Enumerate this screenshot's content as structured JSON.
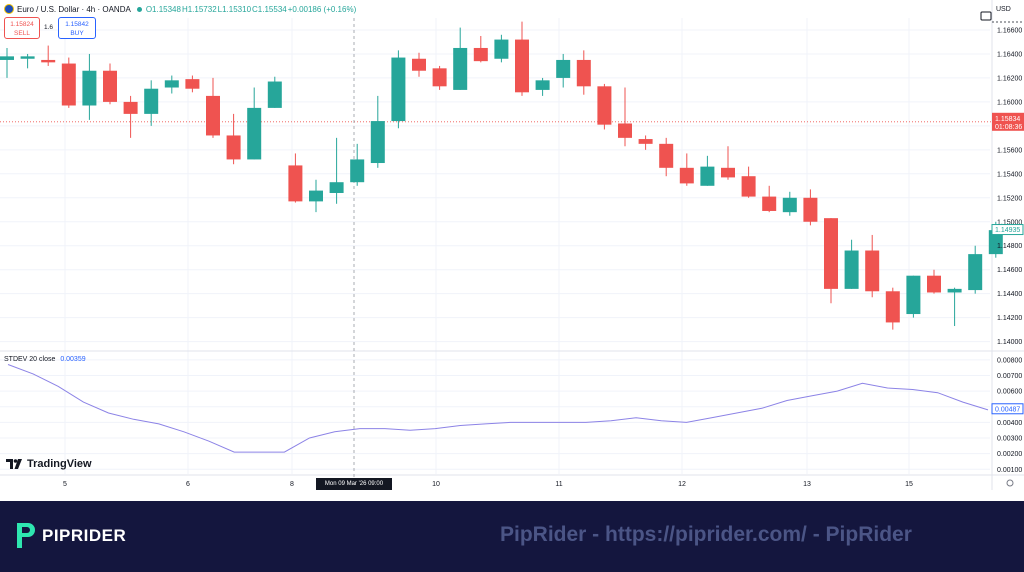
{
  "header": {
    "symbol": "Euro / U.S. Dollar · 4h · OANDA",
    "open": "O1.15348",
    "high": "H1.15732",
    "low": "L1.15310",
    "close": "C1.15534",
    "change": "+0.00186 (+0.16%)"
  },
  "trade": {
    "sell_price": "1.15824",
    "sell_label": "SELL",
    "spread": "1.6",
    "buy_price": "1.15842",
    "buy_label": "BUY"
  },
  "currency": "USD",
  "indicator": {
    "name": "STDEV 20 close",
    "value": "0.00359"
  },
  "crosshair_label": "Mon 09 Mar '26   09:00",
  "logo_text": "TradingView",
  "footer": {
    "brand": "PIPRIDER",
    "watermark": "PipRider - https://piprider.com/ - PipRider"
  },
  "colors": {
    "up": "#26a69a",
    "down": "#ef5350",
    "stdev": "#8c83e6",
    "price_tag": "#ef5350"
  },
  "chart_data": [
    {
      "type": "candlestick",
      "title": "Euro / U.S. Dollar · 4h · OANDA",
      "x_tick_labels": [
        "5",
        "6",
        "8",
        "10",
        "11",
        "12",
        "13",
        "15"
      ],
      "y_ticks": [
        "1.16600",
        "1.16400",
        "1.16200",
        "1.16000",
        "1.15800",
        "1.15600",
        "1.15400",
        "1.15200",
        "1.15000",
        "1.14800",
        "1.14600",
        "1.14400",
        "1.14200",
        "1.14000"
      ],
      "ylim": [
        1.1393,
        1.167
      ],
      "last_price": {
        "price": "1.15834",
        "countdown": "01:08:36",
        "value": 1.15834
      },
      "current_price_tag": {
        "price": "1.14935",
        "value": 1.14935
      },
      "candles": [
        {
          "o": 1.1635,
          "h": 1.1645,
          "l": 1.162,
          "c": 1.1638
        },
        {
          "o": 1.1636,
          "h": 1.164,
          "l": 1.1628,
          "c": 1.1638
        },
        {
          "o": 1.1635,
          "h": 1.1647,
          "l": 1.163,
          "c": 1.1633
        },
        {
          "o": 1.1632,
          "h": 1.1637,
          "l": 1.1595,
          "c": 1.1597
        },
        {
          "o": 1.1597,
          "h": 1.164,
          "l": 1.1585,
          "c": 1.1626
        },
        {
          "o": 1.1626,
          "h": 1.1632,
          "l": 1.1598,
          "c": 1.16
        },
        {
          "o": 1.16,
          "h": 1.1605,
          "l": 1.157,
          "c": 1.159
        },
        {
          "o": 1.159,
          "h": 1.1618,
          "l": 1.158,
          "c": 1.1611
        },
        {
          "o": 1.1612,
          "h": 1.1622,
          "l": 1.1607,
          "c": 1.1618
        },
        {
          "o": 1.1619,
          "h": 1.1622,
          "l": 1.1608,
          "c": 1.1611
        },
        {
          "o": 1.1605,
          "h": 1.162,
          "l": 1.157,
          "c": 1.1572
        },
        {
          "o": 1.1572,
          "h": 1.159,
          "l": 1.1548,
          "c": 1.1552
        },
        {
          "o": 1.1552,
          "h": 1.1612,
          "l": 1.1552,
          "c": 1.1595
        },
        {
          "o": 1.1595,
          "h": 1.1621,
          "l": 1.1595,
          "c": 1.1617
        },
        {
          "o": 1.1547,
          "h": 1.1557,
          "l": 1.1516,
          "c": 1.1517
        },
        {
          "o": 1.1517,
          "h": 1.1535,
          "l": 1.1508,
          "c": 1.1526
        },
        {
          "o": 1.1524,
          "h": 1.157,
          "l": 1.1515,
          "c": 1.1533
        },
        {
          "o": 1.1533,
          "h": 1.1565,
          "l": 1.153,
          "c": 1.1552
        },
        {
          "o": 1.1549,
          "h": 1.1605,
          "l": 1.1545,
          "c": 1.1584
        },
        {
          "o": 1.1584,
          "h": 1.1643,
          "l": 1.1578,
          "c": 1.1637
        },
        {
          "o": 1.1636,
          "h": 1.1641,
          "l": 1.1621,
          "c": 1.1626
        },
        {
          "o": 1.1628,
          "h": 1.163,
          "l": 1.161,
          "c": 1.1613
        },
        {
          "o": 1.161,
          "h": 1.1662,
          "l": 1.161,
          "c": 1.1645
        },
        {
          "o": 1.1645,
          "h": 1.1655,
          "l": 1.1633,
          "c": 1.1634
        },
        {
          "o": 1.1636,
          "h": 1.1656,
          "l": 1.1633,
          "c": 1.1652
        },
        {
          "o": 1.1652,
          "h": 1.1667,
          "l": 1.1605,
          "c": 1.1608
        },
        {
          "o": 1.161,
          "h": 1.162,
          "l": 1.1605,
          "c": 1.1618
        },
        {
          "o": 1.162,
          "h": 1.164,
          "l": 1.1612,
          "c": 1.1635
        },
        {
          "o": 1.1635,
          "h": 1.1643,
          "l": 1.1606,
          "c": 1.1613
        },
        {
          "o": 1.1613,
          "h": 1.1615,
          "l": 1.1577,
          "c": 1.1581
        },
        {
          "o": 1.1582,
          "h": 1.1612,
          "l": 1.1563,
          "c": 1.157
        },
        {
          "o": 1.1569,
          "h": 1.1572,
          "l": 1.156,
          "c": 1.1565
        },
        {
          "o": 1.1565,
          "h": 1.157,
          "l": 1.1538,
          "c": 1.1545
        },
        {
          "o": 1.1545,
          "h": 1.1557,
          "l": 1.153,
          "c": 1.1532
        },
        {
          "o": 1.153,
          "h": 1.1555,
          "l": 1.153,
          "c": 1.1546
        },
        {
          "o": 1.1545,
          "h": 1.1563,
          "l": 1.1535,
          "c": 1.1537
        },
        {
          "o": 1.1538,
          "h": 1.1546,
          "l": 1.152,
          "c": 1.1521
        },
        {
          "o": 1.1521,
          "h": 1.153,
          "l": 1.1508,
          "c": 1.1509
        },
        {
          "o": 1.1508,
          "h": 1.1525,
          "l": 1.1505,
          "c": 1.152
        },
        {
          "o": 1.152,
          "h": 1.1527,
          "l": 1.1497,
          "c": 1.15
        },
        {
          "o": 1.1503,
          "h": 1.1503,
          "l": 1.1432,
          "c": 1.1444
        },
        {
          "o": 1.1444,
          "h": 1.1485,
          "l": 1.1444,
          "c": 1.1476
        },
        {
          "o": 1.1476,
          "h": 1.1489,
          "l": 1.1437,
          "c": 1.1442
        },
        {
          "o": 1.1442,
          "h": 1.1445,
          "l": 1.141,
          "c": 1.1416
        },
        {
          "o": 1.1423,
          "h": 1.1455,
          "l": 1.142,
          "c": 1.1455
        },
        {
          "o": 1.1455,
          "h": 1.146,
          "l": 1.144,
          "c": 1.1441
        },
        {
          "o": 1.1441,
          "h": 1.1445,
          "l": 1.1413,
          "c": 1.1444
        },
        {
          "o": 1.1443,
          "h": 1.148,
          "l": 1.144,
          "c": 1.1473
        },
        {
          "o": 1.1473,
          "h": 1.15,
          "l": 1.147,
          "c": 1.1493
        }
      ]
    },
    {
      "type": "line",
      "series": [
        {
          "name": "STDEV 20 close",
          "values": [
            0.0077,
            0.0071,
            0.0063,
            0.0053,
            0.0046,
            0.0042,
            0.0039,
            0.0034,
            0.0028,
            0.0021,
            0.0021,
            0.0021,
            0.003,
            0.0034,
            0.0036,
            0.0036,
            0.0035,
            0.0036,
            0.0038,
            0.0039,
            0.004,
            0.004,
            0.004,
            0.004,
            0.0041,
            0.0043,
            0.0041,
            0.004,
            0.0043,
            0.0046,
            0.0049,
            0.0054,
            0.0057,
            0.006,
            0.0065,
            0.0062,
            0.0061,
            0.0059,
            0.0053,
            0.0048
          ]
        }
      ],
      "y_ticks": [
        "0.00800",
        "0.00700",
        "0.00600",
        "0.00500",
        "0.00400",
        "0.00300",
        "0.00200",
        "0.00100"
      ],
      "ylim": [
        0.0007,
        0.0085
      ],
      "current_value_tag": {
        "label": "0.00487",
        "value": 0.00487
      }
    }
  ]
}
